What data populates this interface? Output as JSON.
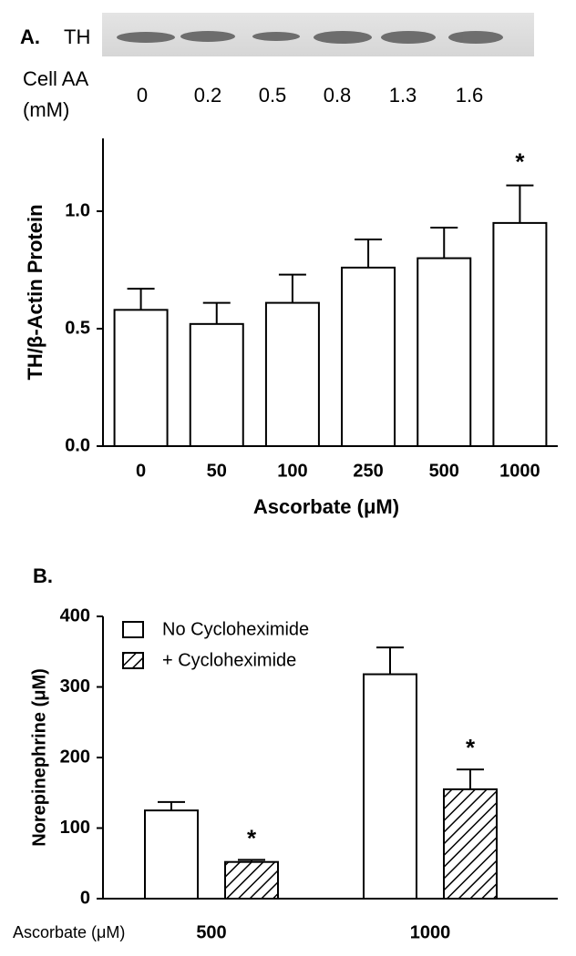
{
  "panel_labels": [
    "A.",
    "B."
  ],
  "blot": {
    "label": "TH",
    "row_label": [
      "Cell  AA",
      "(mM)"
    ],
    "cell_aa": [
      0,
      0.2,
      0.5,
      0.8,
      1.3,
      1.6
    ]
  },
  "chart_data": [
    {
      "type": "bar",
      "x_label": "Ascorbate (μM)",
      "y_label": "TH/β-Actin Protein",
      "categories": [
        "0",
        "50",
        "100",
        "250",
        "500",
        "1000"
      ],
      "values": [
        0.58,
        0.52,
        0.61,
        0.76,
        0.8,
        0.95
      ],
      "errors": [
        0.09,
        0.09,
        0.12,
        0.12,
        0.13,
        0.16
      ],
      "color": "#ffffff",
      "annotation": "*",
      "significant": [
        false,
        false,
        false,
        false,
        false,
        true
      ],
      "ylim": [
        0,
        1.31
      ],
      "yticks": [
        {
          "value": 0,
          "label": "0.0"
        },
        {
          "value": 0.5,
          "label": "0.5"
        },
        {
          "value": 1,
          "label": "1.0"
        }
      ]
    },
    {
      "type": "grouped_bar",
      "x_label": "Ascorbate (μM)",
      "y_label": "Norepinephrine (μM)",
      "categories": [
        "500",
        "1000"
      ],
      "series": [
        {
          "name": "No Cycloheximide",
          "color": "#ffffff",
          "hatch": false,
          "values": [
            125,
            318
          ],
          "errors": [
            12,
            38
          ]
        },
        {
          "name": "+ Cycloheximide",
          "color": "#ffffff",
          "hatch": true,
          "values": [
            52,
            155
          ],
          "errors": [
            3,
            28
          ],
          "significant": [
            true,
            true
          ]
        }
      ],
      "annotation": "*",
      "ylim": [
        0,
        400
      ],
      "yticks": [
        0,
        100,
        200,
        300,
        400
      ]
    }
  ]
}
